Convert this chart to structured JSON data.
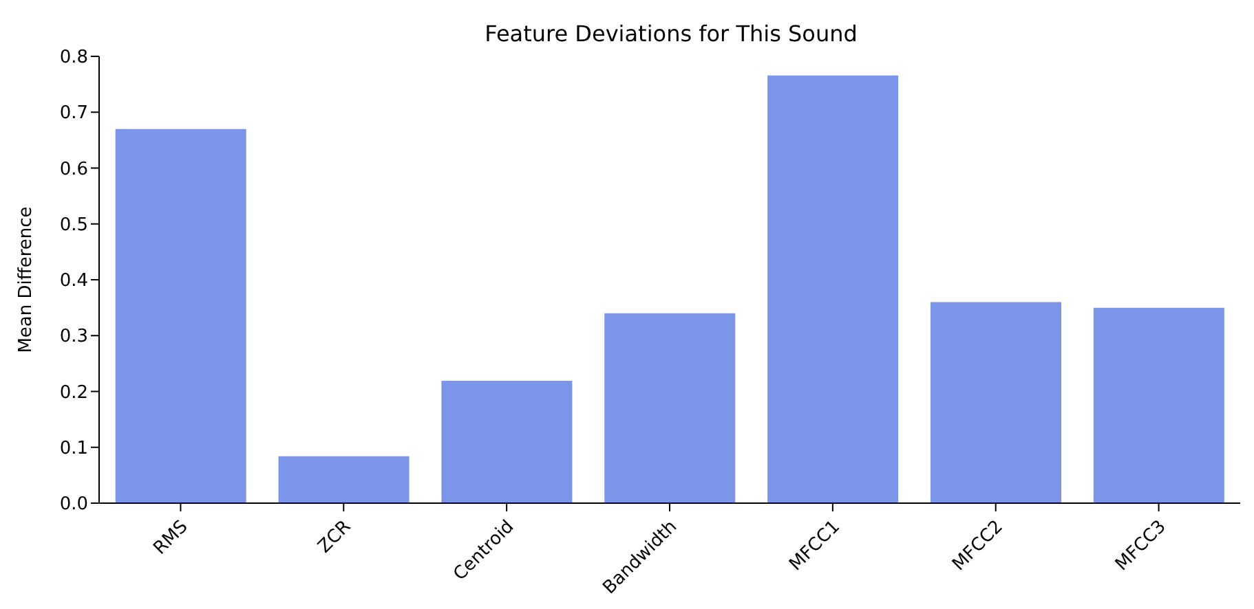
{
  "chart_data": {
    "type": "bar",
    "title": "Feature Deviations for This Sound",
    "ylabel": "Mean Difference",
    "categories": [
      "RMS",
      "ZCR",
      "Centroid",
      "Bandwidth",
      "MFCC1",
      "MFCC2",
      "MFCC3"
    ],
    "values": [
      0.67,
      0.084,
      0.219,
      0.34,
      0.766,
      0.36,
      0.35
    ],
    "color": "#7b95e8",
    "ylim": [
      0,
      0.8
    ],
    "yticks": [
      {
        "value": 0,
        "label": "0.0"
      },
      0.1,
      0.2,
      0.3,
      0.4,
      0.5,
      0.6,
      0.7,
      0.8
    ],
    "grid": false,
    "legend": false
  }
}
